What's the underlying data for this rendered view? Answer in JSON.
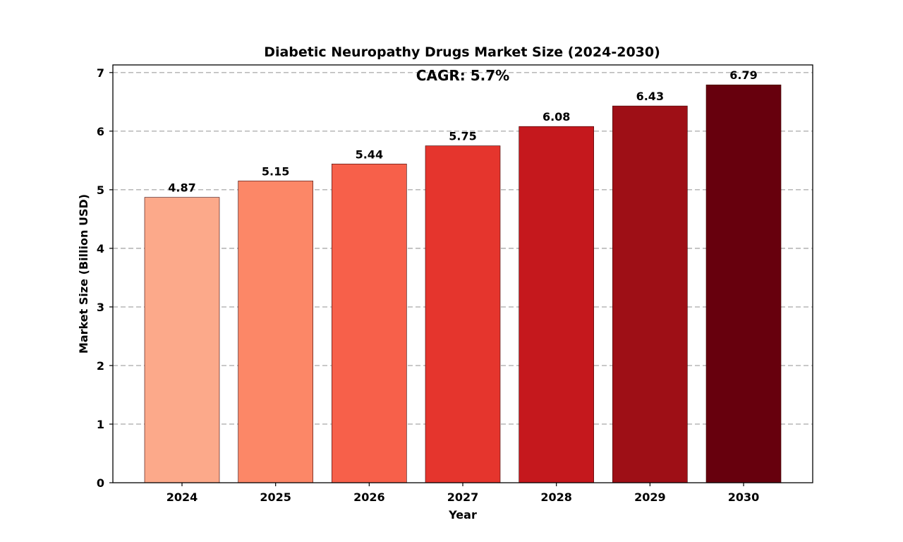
{
  "chart_data": {
    "type": "bar",
    "title": "Diabetic Neuropathy Drugs Market Size (2024-2030)",
    "annotation": "CAGR: 5.7%",
    "xlabel": "Year",
    "ylabel": "Market Size (Billion USD)",
    "categories": [
      "2024",
      "2025",
      "2026",
      "2027",
      "2028",
      "2029",
      "2030"
    ],
    "values": [
      4.87,
      5.15,
      5.44,
      5.75,
      6.08,
      6.43,
      6.79
    ],
    "value_labels": [
      "4.87",
      "5.15",
      "5.44",
      "5.75",
      "6.08",
      "6.43",
      "6.79"
    ],
    "colors": [
      "#fca98a",
      "#fc8767",
      "#f7604a",
      "#e5352d",
      "#c5181d",
      "#9e0f16",
      "#67000d"
    ],
    "ylim": [
      0,
      7.13
    ],
    "yticks": [
      0,
      1,
      2,
      3,
      4,
      5,
      6,
      7
    ],
    "ytick_labels": [
      "0",
      "1",
      "2",
      "3",
      "4",
      "5",
      "6",
      "7"
    ],
    "grid": "y-dashed",
    "legend": "none"
  }
}
